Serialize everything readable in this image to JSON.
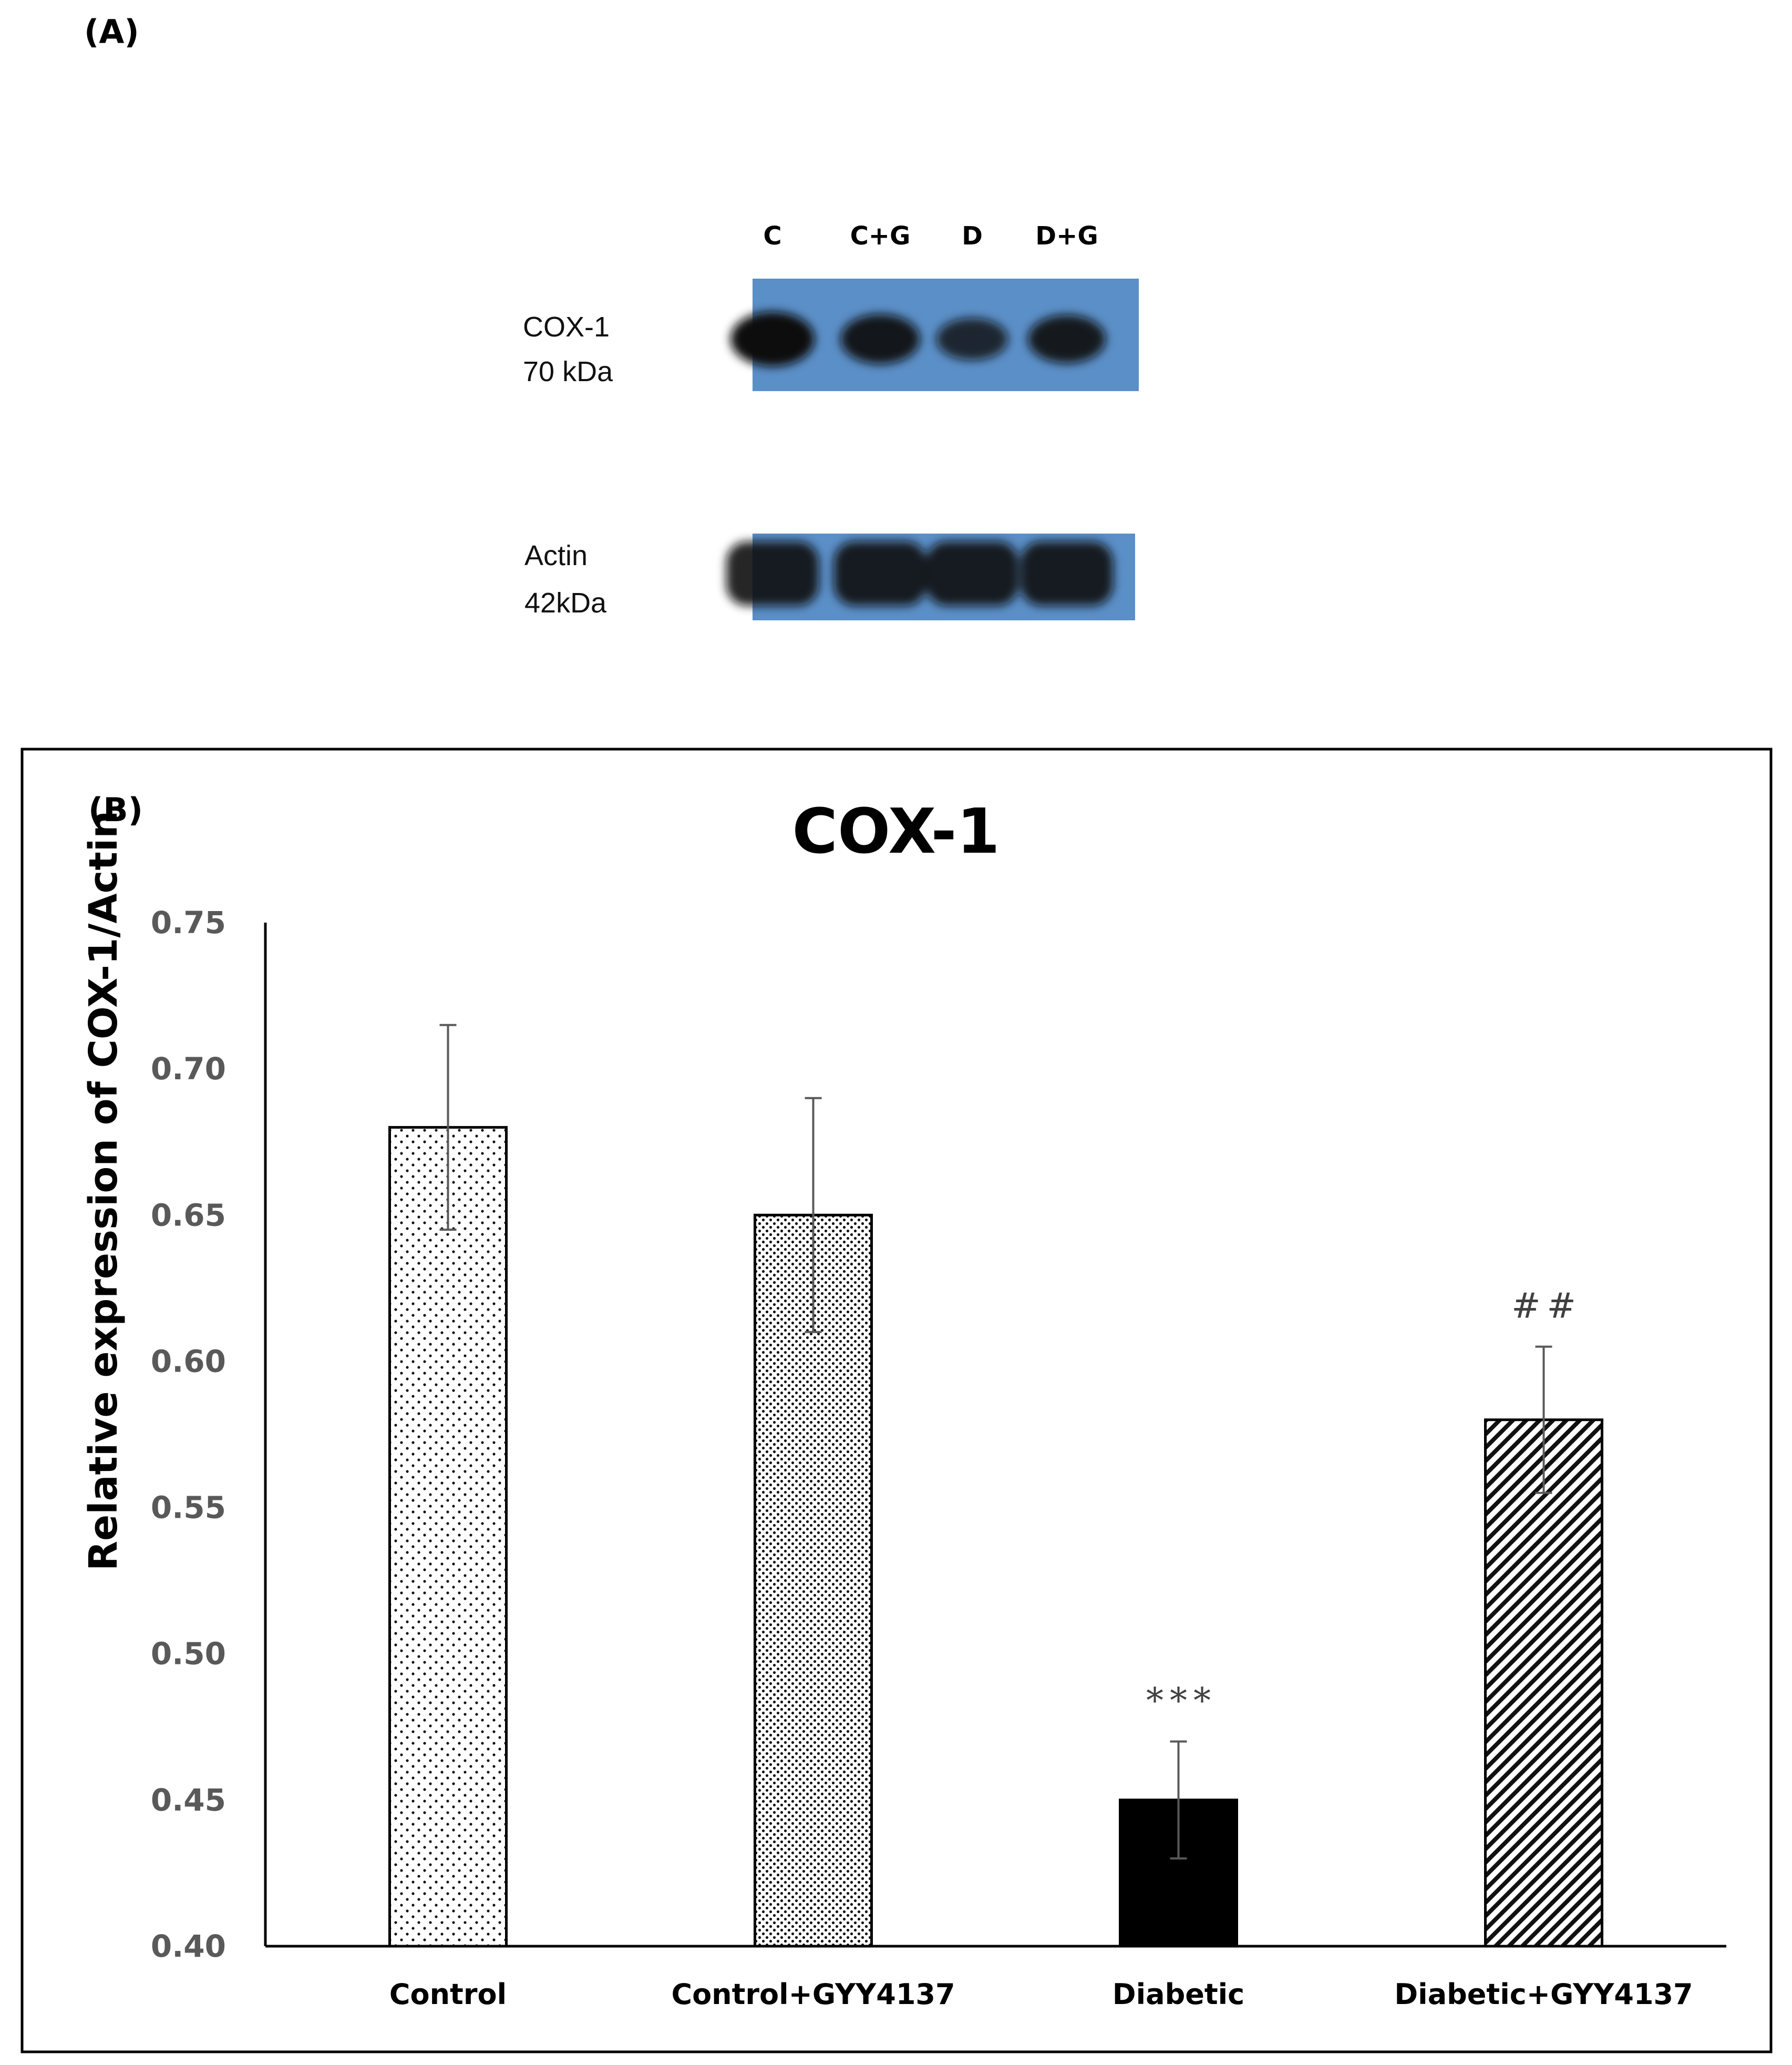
{
  "panel_a": {
    "label": "(A)",
    "lanes": [
      "C",
      "C+G",
      "D",
      "D+G"
    ],
    "cox_label": [
      "COX-1",
      "70 kDa"
    ],
    "actin_label": [
      "Actin",
      "42kDa"
    ],
    "colors": {
      "membrane": "#5b8fc7",
      "band": "#111111"
    },
    "cox_band_intensity": [
      1.0,
      0.85,
      0.6,
      0.8
    ],
    "actin_band_intensity": [
      1.0,
      1.0,
      1.0,
      1.0
    ]
  },
  "panel_b": {
    "label": "(B)"
  },
  "chart_data": {
    "type": "bar",
    "title": "COX-1",
    "xlabel": "",
    "ylabel": "Relative expression of COX-1/Actin",
    "ylim": [
      0.4,
      0.75
    ],
    "yticks": [
      "0.75",
      "0.70",
      "0.65",
      "0.60",
      "0.55",
      "0.50",
      "0.45",
      "0.40"
    ],
    "categories": [
      "Control",
      "Control+GYY4137",
      "Diabetic",
      "Diabetic+GYY4137"
    ],
    "values": [
      0.68,
      0.65,
      0.45,
      0.58
    ],
    "errors": [
      0.035,
      0.04,
      0.02,
      0.025
    ],
    "annotations": [
      "",
      "",
      "***",
      "##"
    ],
    "fills": [
      "sparse-dots",
      "dense-dots",
      "solid-black",
      "diagonal-hatch"
    ],
    "grid": false,
    "legend": "none"
  }
}
